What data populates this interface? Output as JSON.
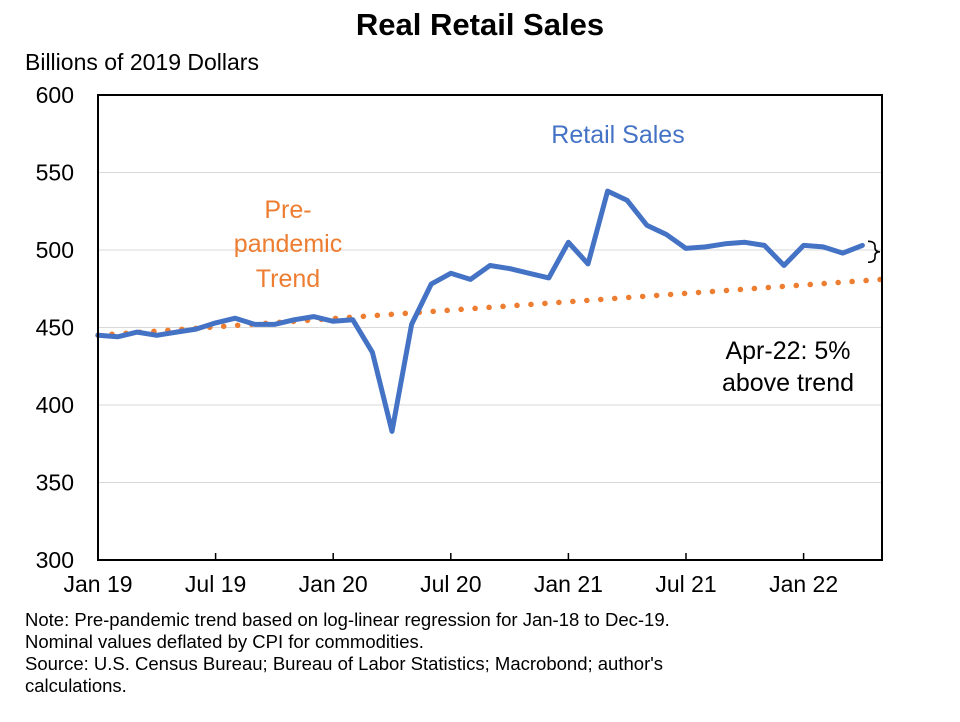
{
  "chart_data": {
    "type": "line",
    "title": "Real Retail Sales",
    "ylabel": "Billions of 2019 Dollars",
    "xlabel": "",
    "ylim": [
      300,
      600
    ],
    "yticks": [
      300,
      350,
      400,
      450,
      500,
      550,
      600
    ],
    "x_tick_labels": [
      "Jan 19",
      "Jul 19",
      "Jan 20",
      "Jul 20",
      "Jan 21",
      "Jul 21",
      "Jan 22"
    ],
    "x_tick_months": [
      0,
      6,
      12,
      18,
      24,
      30,
      36
    ],
    "x_range_months": [
      0,
      40
    ],
    "grid": true,
    "series": [
      {
        "name": "Retail Sales",
        "color": "#4472C4",
        "style": "solid",
        "x_months": [
          0,
          1,
          2,
          3,
          4,
          5,
          6,
          7,
          8,
          9,
          10,
          11,
          12,
          13,
          14,
          15,
          16,
          17,
          18,
          19,
          20,
          21,
          22,
          23,
          24,
          25,
          26,
          27,
          28,
          29,
          30,
          31,
          32,
          33,
          34,
          35,
          36,
          37,
          38,
          39
        ],
        "values": [
          445,
          444,
          447,
          445,
          447,
          449,
          453,
          456,
          452,
          452,
          455,
          457,
          454,
          455,
          434,
          383,
          452,
          478,
          485,
          481,
          490,
          488,
          485,
          482,
          505,
          491,
          538,
          532,
          516,
          510,
          501,
          502,
          504,
          505,
          503,
          490,
          503,
          502,
          498,
          503
        ]
      },
      {
        "name": "Pre-pandemic Trend",
        "color": "#ED7D31",
        "style": "dotted",
        "x_months": [
          0,
          40
        ],
        "values": [
          445,
          481
        ]
      }
    ],
    "annotations": {
      "series_label": "Retail Sales",
      "trend_label_lines": [
        "Pre-",
        "pandemic",
        "Trend"
      ],
      "gap_label_lines": [
        "Apr-22: 5%",
        "above trend"
      ]
    }
  },
  "notes": {
    "note_line1": "Note: Pre-pandemic trend based on log-linear regression for Jan-18 to Dec-19.",
    "note_line2": "Nominal values deflated by CPI for commodities.",
    "source_line1": "Source: U.S. Census Bureau; Bureau of Labor Statistics; Macrobond; author's",
    "source_line2": "calculations."
  }
}
